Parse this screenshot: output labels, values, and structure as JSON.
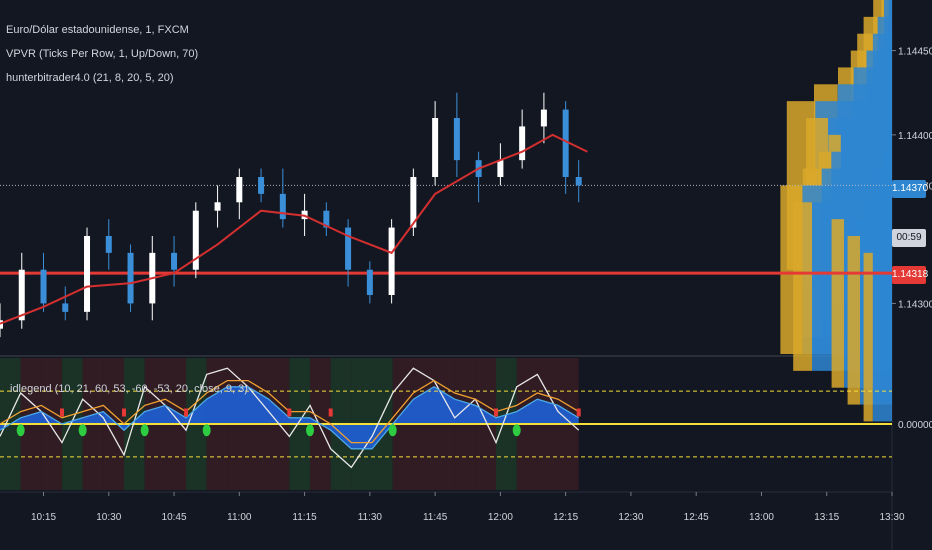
{
  "header": {
    "symbol": "Euro/Dólar estadounidense, 1, FXCM",
    "vpvr": "VPVR (Ticks Per Row, 1, Up/Down, 70)",
    "hunter": "hunterbitrader4.0 (21, 8, 20, 5, 20)"
  },
  "price_axis": {
    "ticks": [
      "1.14450",
      "1.14400",
      "1.14370",
      "1.14300"
    ],
    "current_price": "1.14370",
    "current_time_label": "00:59",
    "level_price": "1.14318"
  },
  "indicator": {
    "legend": "idlegend (10, 21, 60, 53, -60, -53, 20, close, 9, 3)",
    "zero_label": "0.00000"
  },
  "time_axis": {
    "ticks": [
      "10:15",
      "10:30",
      "10:45",
      "11:00",
      "11:15",
      "11:30",
      "11:45",
      "12:00",
      "12:15",
      "12:30",
      "12:45",
      "13:00",
      "13:15",
      "13:30"
    ]
  },
  "colors": {
    "background": "#131722",
    "up_candle": "#ffffff",
    "down_candle": "#3b8fd9",
    "moving_average": "#d32f2f",
    "level_line": "#e53935",
    "volume_up": "#d9a82a",
    "volume_down": "#2e86d1",
    "zero_line": "#f5e03a"
  },
  "chart_data": {
    "type": "candlestick",
    "xlabel": "",
    "ylabel": "",
    "ylim": [
      1.1427,
      1.1448
    ],
    "x_range": [
      "10:05",
      "13:30"
    ],
    "current_price": 1.1437,
    "horizontal_level": 1.14318,
    "series": [
      {
        "name": "Euro/Dólar estadounidense",
        "values": [
          {
            "t": "10:05",
            "o": 1.14285,
            "h": 1.143,
            "l": 1.1428,
            "c": 1.1429
          },
          {
            "t": "10:10",
            "o": 1.1429,
            "h": 1.1433,
            "l": 1.14285,
            "c": 1.1432
          },
          {
            "t": "10:15",
            "o": 1.1432,
            "h": 1.1433,
            "l": 1.14295,
            "c": 1.143
          },
          {
            "t": "10:20",
            "o": 1.143,
            "h": 1.1431,
            "l": 1.1429,
            "c": 1.14295
          },
          {
            "t": "10:25",
            "o": 1.14295,
            "h": 1.14345,
            "l": 1.1429,
            "c": 1.1434
          },
          {
            "t": "10:30",
            "o": 1.1434,
            "h": 1.1435,
            "l": 1.1432,
            "c": 1.1433
          },
          {
            "t": "10:35",
            "o": 1.1433,
            "h": 1.14335,
            "l": 1.14295,
            "c": 1.143
          },
          {
            "t": "10:40",
            "o": 1.143,
            "h": 1.1434,
            "l": 1.1429,
            "c": 1.1433
          },
          {
            "t": "10:45",
            "o": 1.1433,
            "h": 1.1434,
            "l": 1.1431,
            "c": 1.1432
          },
          {
            "t": "10:50",
            "o": 1.1432,
            "h": 1.1436,
            "l": 1.14315,
            "c": 1.14355
          },
          {
            "t": "10:55",
            "o": 1.14355,
            "h": 1.1437,
            "l": 1.14345,
            "c": 1.1436
          },
          {
            "t": "11:00",
            "o": 1.1436,
            "h": 1.1438,
            "l": 1.1435,
            "c": 1.14375
          },
          {
            "t": "11:05",
            "o": 1.14375,
            "h": 1.1438,
            "l": 1.1436,
            "c": 1.14365
          },
          {
            "t": "11:10",
            "o": 1.14365,
            "h": 1.1438,
            "l": 1.14345,
            "c": 1.1435
          },
          {
            "t": "11:15",
            "o": 1.1435,
            "h": 1.14365,
            "l": 1.1434,
            "c": 1.14355
          },
          {
            "t": "11:20",
            "o": 1.14355,
            "h": 1.1436,
            "l": 1.1434,
            "c": 1.14345
          },
          {
            "t": "11:25",
            "o": 1.14345,
            "h": 1.1435,
            "l": 1.1431,
            "c": 1.1432
          },
          {
            "t": "11:30",
            "o": 1.1432,
            "h": 1.14325,
            "l": 1.143,
            "c": 1.14305
          },
          {
            "t": "11:35",
            "o": 1.14305,
            "h": 1.1435,
            "l": 1.143,
            "c": 1.14345
          },
          {
            "t": "11:40",
            "o": 1.14345,
            "h": 1.1438,
            "l": 1.1434,
            "c": 1.14375
          },
          {
            "t": "11:45",
            "o": 1.14375,
            "h": 1.1442,
            "l": 1.1437,
            "c": 1.1441
          },
          {
            "t": "11:50",
            "o": 1.1441,
            "h": 1.14425,
            "l": 1.14375,
            "c": 1.14385
          },
          {
            "t": "11:55",
            "o": 1.14385,
            "h": 1.1439,
            "l": 1.1436,
            "c": 1.14375
          },
          {
            "t": "12:00",
            "o": 1.14375,
            "h": 1.14395,
            "l": 1.1437,
            "c": 1.14385
          },
          {
            "t": "12:05",
            "o": 1.14385,
            "h": 1.14415,
            "l": 1.1438,
            "c": 1.14405
          },
          {
            "t": "12:10",
            "o": 1.14405,
            "h": 1.14425,
            "l": 1.14395,
            "c": 1.14415
          },
          {
            "t": "12:15",
            "o": 1.14415,
            "h": 1.1442,
            "l": 1.14365,
            "c": 1.14375
          },
          {
            "t": "12:18",
            "o": 1.14375,
            "h": 1.14385,
            "l": 1.1436,
            "c": 1.1437
          }
        ]
      },
      {
        "name": "hunterbitrader4.0",
        "values": [
          {
            "t": "10:05",
            "v": 1.14288
          },
          {
            "t": "10:15",
            "v": 1.14298
          },
          {
            "t": "10:25",
            "v": 1.1431
          },
          {
            "t": "10:35",
            "v": 1.14312
          },
          {
            "t": "10:45",
            "v": 1.14318
          },
          {
            "t": "10:55",
            "v": 1.14335
          },
          {
            "t": "11:05",
            "v": 1.14355
          },
          {
            "t": "11:15",
            "v": 1.14352
          },
          {
            "t": "11:25",
            "v": 1.1434
          },
          {
            "t": "11:35",
            "v": 1.1433
          },
          {
            "t": "11:45",
            "v": 1.14365
          },
          {
            "t": "11:55",
            "v": 1.1438
          },
          {
            "t": "12:05",
            "v": 1.1439
          },
          {
            "t": "12:12",
            "v": 1.144
          },
          {
            "t": "12:20",
            "v": 1.1439
          }
        ]
      }
    ],
    "volume_profile": {
      "title": "VPVR (Ticks Per Row, 1, Up/Down, 70)",
      "rows": [
        {
          "price": 1.1444,
          "up": 0.03,
          "down": 0.02
        },
        {
          "price": 1.1443,
          "up": 0.08,
          "down": 0.05
        },
        {
          "price": 1.1442,
          "up": 0.14,
          "down": 0.09
        },
        {
          "price": 1.1441,
          "up": 0.18,
          "down": 0.12
        },
        {
          "price": 1.144,
          "up": 0.22,
          "down": 0.16
        },
        {
          "price": 1.1439,
          "up": 0.3,
          "down": 0.24
        },
        {
          "price": 1.1438,
          "up": 0.45,
          "down": 0.34
        },
        {
          "price": 1.1437,
          "up": 0.62,
          "down": 0.48
        },
        {
          "price": 1.1436,
          "up": 0.5,
          "down": 0.4
        },
        {
          "price": 1.1435,
          "up": 0.36,
          "down": 0.32
        },
        {
          "price": 1.1434,
          "up": 0.42,
          "down": 0.38
        },
        {
          "price": 1.1433,
          "up": 0.52,
          "down": 0.44
        },
        {
          "price": 1.1432,
          "up": 0.66,
          "down": 0.56
        },
        {
          "price": 1.1431,
          "up": 0.58,
          "down": 0.5
        },
        {
          "price": 1.143,
          "up": 0.34,
          "down": 0.3
        },
        {
          "price": 1.1429,
          "up": 0.24,
          "down": 0.2
        },
        {
          "price": 1.1428,
          "up": 0.14,
          "down": 0.12
        }
      ]
    },
    "oscillator": {
      "title": "idlegend (10, 21, 60, 53, -60, -53, 20, close, 9, 3)",
      "ylim": [
        -1,
        1
      ],
      "levels": [
        0,
        0.53,
        -0.53
      ],
      "series": [
        {
          "name": "white",
          "values": [
            -0.2,
            0.5,
            0.2,
            -0.3,
            0.4,
            0.1,
            -0.5,
            0.6,
            0.3,
            -0.1,
            0.8,
            0.9,
            0.6,
            0.2,
            -0.2,
            0.3,
            -0.4,
            -0.7,
            -0.2,
            0.5,
            0.9,
            0.7,
            0.1,
            0.4,
            -0.3,
            0.6,
            0.8,
            0.2,
            -0.1
          ]
        },
        {
          "name": "orange",
          "values": [
            0.0,
            0.2,
            0.3,
            0.1,
            0.2,
            0.3,
            0.0,
            0.3,
            0.4,
            0.2,
            0.5,
            0.7,
            0.7,
            0.5,
            0.2,
            0.2,
            0.0,
            -0.3,
            -0.3,
            0.1,
            0.5,
            0.7,
            0.5,
            0.4,
            0.2,
            0.3,
            0.5,
            0.4,
            0.2
          ]
        },
        {
          "name": "blue",
          "values": [
            -0.1,
            0.1,
            0.2,
            0.0,
            0.1,
            0.2,
            -0.1,
            0.2,
            0.3,
            0.1,
            0.4,
            0.6,
            0.6,
            0.4,
            0.1,
            0.1,
            -0.1,
            -0.4,
            -0.4,
            0.0,
            0.4,
            0.6,
            0.4,
            0.3,
            0.1,
            0.2,
            0.4,
            0.3,
            0.1
          ]
        }
      ]
    }
  }
}
